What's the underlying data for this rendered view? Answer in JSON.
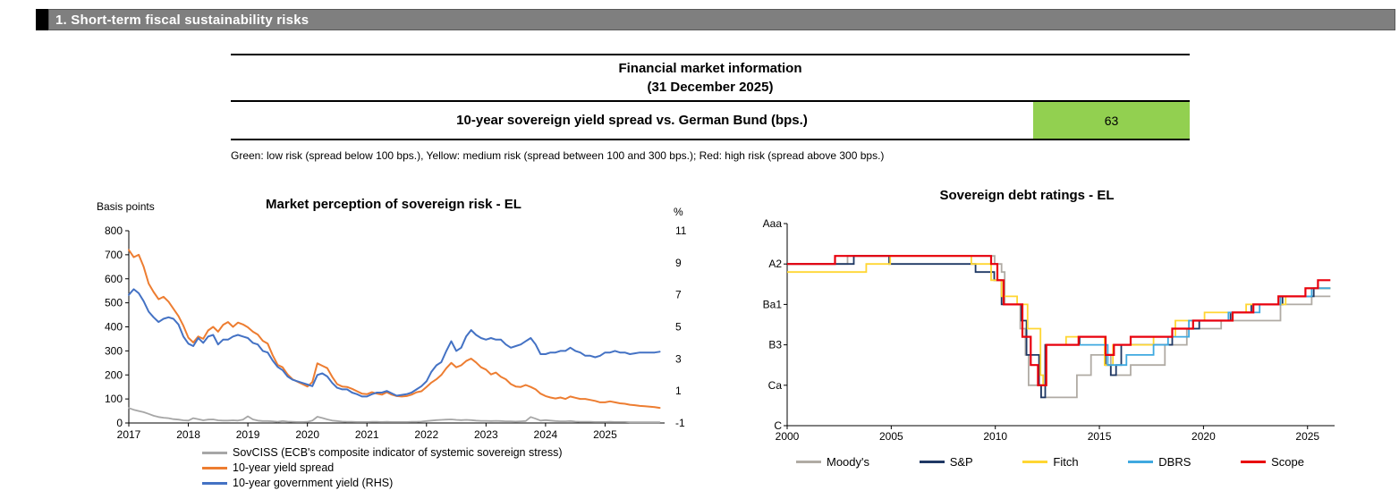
{
  "header": {
    "section_title": "1. Short-term fiscal sustainability risks"
  },
  "table": {
    "title": "Financial market information",
    "subtitle": "(31 December 2025)",
    "row_label": "10-year sovereign yield spread vs. German Bund (bps.)",
    "row_value": "63",
    "value_bg": "#92d050",
    "note": "Green: low risk (spread below 100 bps.), Yellow: medium risk (spread between 100 and 300 bps.); Red: high risk (spread above 300 bps.)"
  },
  "chart_data": [
    {
      "id": "market-risk",
      "type": "line",
      "title": "Market perception of sovereign risk - EL",
      "left_axis_label": "Basis points",
      "right_axis_label": "%",
      "xlim": [
        2017,
        2026
      ],
      "x_ticks": [
        2017,
        2018,
        2019,
        2020,
        2021,
        2022,
        2023,
        2024,
        2025
      ],
      "x_start": 2017,
      "x_points_per_year": 12,
      "ylim_left": [
        0,
        800
      ],
      "y_ticks_left": [
        0,
        100,
        200,
        300,
        400,
        500,
        600,
        700,
        800
      ],
      "ylim_right": [
        -1,
        11
      ],
      "y_ticks_right": [
        -1,
        1,
        3,
        5,
        7,
        9,
        11
      ],
      "grid": false,
      "legend_position": "bottom-left",
      "series": [
        {
          "name": "SovCISS (ECB's composite indicator of systemic sovereign stress)",
          "color": "#a6a6a6",
          "axis": "left",
          "width": 1.8,
          "values": [
            62,
            55,
            50,
            45,
            38,
            30,
            25,
            22,
            20,
            16,
            14,
            11,
            10,
            20,
            16,
            11,
            14,
            15,
            11,
            10,
            10,
            11,
            10,
            14,
            28,
            15,
            10,
            8,
            8,
            7,
            5,
            8,
            6,
            5,
            4,
            4,
            5,
            10,
            26,
            21,
            15,
            10,
            8,
            6,
            5,
            5,
            4,
            4,
            4,
            5,
            5,
            4,
            5,
            4,
            4,
            4,
            4,
            5,
            5,
            6,
            8,
            10,
            12,
            13,
            14,
            15,
            13,
            12,
            13,
            12,
            10,
            9,
            9,
            8,
            9,
            8,
            7,
            7,
            6,
            7,
            8,
            25,
            18,
            10,
            12,
            10,
            8,
            7,
            7,
            8,
            6,
            5,
            5,
            5,
            4,
            4,
            4,
            5,
            4,
            4,
            4,
            3,
            3,
            3,
            3,
            3,
            3,
            3
          ]
        },
        {
          "name": "10-year yield spread",
          "color": "#ed7d31",
          "axis": "left",
          "width": 2,
          "values": [
            720,
            690,
            700,
            650,
            580,
            545,
            515,
            525,
            505,
            475,
            445,
            405,
            355,
            335,
            360,
            350,
            385,
            400,
            380,
            408,
            420,
            400,
            418,
            410,
            398,
            380,
            368,
            342,
            330,
            282,
            242,
            232,
            202,
            182,
            172,
            162,
            152,
            170,
            248,
            238,
            228,
            192,
            162,
            152,
            150,
            142,
            132,
            122,
            120,
            128,
            122,
            118,
            128,
            118,
            112,
            110,
            112,
            118,
            128,
            132,
            150,
            168,
            182,
            200,
            228,
            250,
            232,
            240,
            258,
            268,
            252,
            232,
            222,
            202,
            210,
            192,
            182,
            162,
            152,
            150,
            158,
            150,
            140,
            122,
            112,
            106,
            102,
            106,
            100,
            110,
            105,
            100,
            100,
            96,
            92,
            86,
            86,
            90,
            86,
            82,
            80,
            76,
            74,
            71,
            70,
            68,
            66,
            63
          ]
        },
        {
          "name": "10-year government yield (RHS)",
          "color": "#4472c4",
          "axis": "right",
          "width": 2,
          "values": [
            7.0,
            7.35,
            7.1,
            6.6,
            5.95,
            5.6,
            5.3,
            5.5,
            5.6,
            5.5,
            5.15,
            4.4,
            3.95,
            3.8,
            4.3,
            4.0,
            4.4,
            4.5,
            3.9,
            4.2,
            4.2,
            4.4,
            4.5,
            4.4,
            4.3,
            4.0,
            3.9,
            3.5,
            3.4,
            2.9,
            2.5,
            2.3,
            1.9,
            1.7,
            1.6,
            1.5,
            1.4,
            1.3,
            2.0,
            2.1,
            1.9,
            1.5,
            1.2,
            1.1,
            1.1,
            0.9,
            0.8,
            0.65,
            0.65,
            0.8,
            0.9,
            0.9,
            1.0,
            0.85,
            0.7,
            0.75,
            0.8,
            0.9,
            1.1,
            1.3,
            1.6,
            2.2,
            2.6,
            2.8,
            3.5,
            4.1,
            3.5,
            3.7,
            4.4,
            4.8,
            4.5,
            4.3,
            4.2,
            4.3,
            4.2,
            4.2,
            3.9,
            3.7,
            3.8,
            3.9,
            4.1,
            4.3,
            3.9,
            3.3,
            3.3,
            3.4,
            3.4,
            3.5,
            3.5,
            3.7,
            3.5,
            3.4,
            3.2,
            3.2,
            3.1,
            3.2,
            3.4,
            3.4,
            3.5,
            3.4,
            3.4,
            3.3,
            3.35,
            3.4,
            3.4,
            3.4,
            3.4,
            3.45
          ]
        }
      ]
    },
    {
      "id": "ratings",
      "type": "step-line",
      "title": "Sovereign debt ratings - EL",
      "xlim": [
        2000,
        2026.3
      ],
      "x_end": 2026.1,
      "x_ticks": [
        2000,
        2005,
        2010,
        2015,
        2020,
        2025
      ],
      "y_unit": "rating notch (0=C, 20=Aaa, Moody's-equivalent scale)",
      "y_ticks": [
        {
          "label": "Aaa",
          "value": 20
        },
        {
          "label": "A2",
          "value": 15
        },
        {
          "label": "Ba1",
          "value": 10
        },
        {
          "label": "B3",
          "value": 5
        },
        {
          "label": "Ca",
          "value": 1
        },
        {
          "label": "C",
          "value": 0
        }
      ],
      "grid": false,
      "legend_position": "bottom",
      "series": [
        {
          "name": "Moody's",
          "color": "#b0aba4",
          "width": 1.8,
          "steps": [
            [
              2000,
              15
            ],
            [
              2002.9,
              16
            ],
            [
              2009.97,
              15
            ],
            [
              2010.3,
              14
            ],
            [
              2010.45,
              10
            ],
            [
              2011.2,
              7
            ],
            [
              2011.45,
              4
            ],
            [
              2011.6,
              1
            ],
            [
              2012.2,
              0.7
            ],
            [
              2013.92,
              2
            ],
            [
              2014.6,
              4
            ],
            [
              2015.55,
              2
            ],
            [
              2016.5,
              3
            ],
            [
              2018.15,
              5
            ],
            [
              2019.2,
              7
            ],
            [
              2020.85,
              8
            ],
            [
              2023.7,
              10
            ],
            [
              2025.2,
              11
            ]
          ]
        },
        {
          "name": "S&P",
          "color": "#1f3864",
          "width": 1.8,
          "steps": [
            [
              2000,
              15
            ],
            [
              2003.2,
              16
            ],
            [
              2004.9,
              15
            ],
            [
              2009.05,
              14
            ],
            [
              2009.95,
              13
            ],
            [
              2010.3,
              10
            ],
            [
              2011.25,
              8
            ],
            [
              2011.5,
              4
            ],
            [
              2012.1,
              1
            ],
            [
              2012.2,
              0.7
            ],
            [
              2012.4,
              5
            ],
            [
              2014.05,
              6
            ],
            [
              2015.3,
              3
            ],
            [
              2015.55,
              2
            ],
            [
              2015.8,
              3
            ],
            [
              2016.05,
              5
            ],
            [
              2018.5,
              7
            ],
            [
              2019.8,
              8
            ],
            [
              2021.3,
              9
            ],
            [
              2022.3,
              10
            ],
            [
              2023.8,
              11
            ],
            [
              2025.3,
              12
            ]
          ]
        },
        {
          "name": "Fitch",
          "color": "#ffd632",
          "width": 1.8,
          "steps": [
            [
              2000,
              14
            ],
            [
              2003.8,
              15
            ],
            [
              2004.95,
              16
            ],
            [
              2008.85,
              15
            ],
            [
              2009.8,
              13
            ],
            [
              2010.3,
              11
            ],
            [
              2011.05,
              10
            ],
            [
              2011.55,
              7
            ],
            [
              2012.17,
              2
            ],
            [
              2012.3,
              1
            ],
            [
              2012.45,
              5
            ],
            [
              2013.4,
              6
            ],
            [
              2015.25,
              3
            ],
            [
              2015.65,
              5
            ],
            [
              2017.6,
              6
            ],
            [
              2018.65,
              8
            ],
            [
              2020.05,
              9
            ],
            [
              2022.05,
              10
            ],
            [
              2023.95,
              11
            ],
            [
              2024.9,
              12
            ]
          ]
        },
        {
          "name": "DBRS",
          "color": "#3fa9e0",
          "width": 1.8,
          "steps": [
            [
              2013.6,
              5
            ],
            [
              2015.4,
              3
            ],
            [
              2016.3,
              4
            ],
            [
              2017.6,
              5
            ],
            [
              2018.3,
              6
            ],
            [
              2019.3,
              8
            ],
            [
              2021.2,
              9
            ],
            [
              2022.7,
              10
            ],
            [
              2023.7,
              11
            ],
            [
              2025.2,
              12
            ]
          ]
        },
        {
          "name": "Scope",
          "color": "#e8000d",
          "width": 2.2,
          "steps": [
            [
              2000,
              15
            ],
            [
              2002.3,
              16
            ],
            [
              2009.8,
              15
            ],
            [
              2010.1,
              13
            ],
            [
              2010.4,
              10
            ],
            [
              2011.3,
              6
            ],
            [
              2011.7,
              3
            ],
            [
              2012.05,
              1
            ],
            [
              2012.45,
              5
            ],
            [
              2014.0,
              6
            ],
            [
              2015.3,
              4
            ],
            [
              2015.7,
              5
            ],
            [
              2016.5,
              6
            ],
            [
              2018.5,
              7
            ],
            [
              2019.5,
              8
            ],
            [
              2021.4,
              9
            ],
            [
              2022.4,
              10
            ],
            [
              2023.6,
              11
            ],
            [
              2024.9,
              12
            ],
            [
              2025.5,
              13
            ]
          ]
        }
      ]
    }
  ]
}
